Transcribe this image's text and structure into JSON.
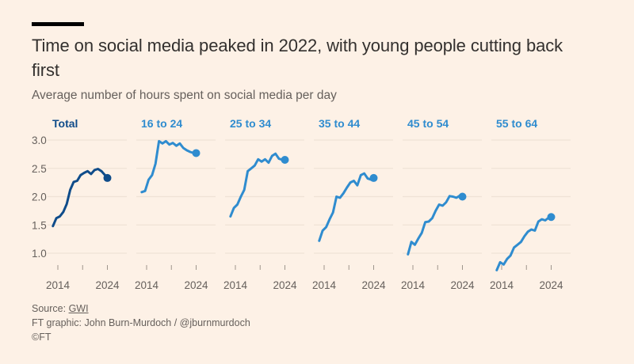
{
  "header": {
    "title": "Time on social media peaked in 2022, with young people cutting back first",
    "subtitle": "Average number of hours spent on social media per day"
  },
  "footer": {
    "source_prefix": "Source: ",
    "source_link": "GWI",
    "credit": "FT graphic: John Burn-Murdoch / @jburnmurdoch",
    "copyright": "©FT"
  },
  "colors": {
    "background": "#fdf1e6",
    "total": "#0f4c8a",
    "age_groups": "#2f8ccf",
    "gridline": "#efe2d6",
    "text": "#33302e",
    "muted_text": "#66605c"
  },
  "chart_data": {
    "type": "line",
    "layout": "small-multiples",
    "title": "Time on social media peaked in 2022, with young people cutting back first",
    "subtitle": "Average number of hours spent on social media per day",
    "xlabel": "",
    "ylabel": "",
    "ylim": [
      0.7,
      3.05
    ],
    "xlim": [
      2013,
      2024.3
    ],
    "yticks": [
      3.0,
      2.5,
      2.0,
      1.5,
      1.0
    ],
    "ytick_labels": [
      "3.0",
      "2.5",
      "2.0",
      "1.5",
      "1.0"
    ],
    "xticks": [
      2014,
      2019,
      2024
    ],
    "xtick_labels": [
      "2014",
      "",
      "2024"
    ],
    "grid": true,
    "x": [
      2013.0,
      2013.7,
      2014.4,
      2015.1,
      2015.8,
      2016.5,
      2017.2,
      2017.9,
      2018.6,
      2019.3,
      2020.0,
      2020.7,
      2021.4,
      2022.1,
      2022.8,
      2023.5,
      2024.0
    ],
    "series": [
      {
        "name": "Total",
        "color_key": "total",
        "values": [
          1.48,
          1.62,
          1.65,
          1.73,
          1.87,
          2.12,
          2.26,
          2.28,
          2.38,
          2.42,
          2.45,
          2.4,
          2.47,
          2.49,
          2.45,
          2.38,
          2.33
        ]
      },
      {
        "name": "16 to 24",
        "color_key": "age_groups",
        "values": [
          2.08,
          2.1,
          2.3,
          2.38,
          2.58,
          2.98,
          2.94,
          2.98,
          2.92,
          2.95,
          2.9,
          2.94,
          2.86,
          2.82,
          2.79,
          2.77,
          2.77
        ]
      },
      {
        "name": "25 to 34",
        "color_key": "age_groups",
        "values": [
          1.65,
          1.8,
          1.86,
          2.0,
          2.12,
          2.45,
          2.5,
          2.55,
          2.66,
          2.62,
          2.66,
          2.6,
          2.72,
          2.76,
          2.67,
          2.65,
          2.65
        ]
      },
      {
        "name": "35 to 44",
        "color_key": "age_groups",
        "values": [
          1.22,
          1.4,
          1.46,
          1.6,
          1.72,
          2.0,
          1.98,
          2.06,
          2.16,
          2.25,
          2.28,
          2.2,
          2.38,
          2.41,
          2.32,
          2.3,
          2.33
        ]
      },
      {
        "name": "45 to 54",
        "color_key": "age_groups",
        "values": [
          0.98,
          1.2,
          1.15,
          1.26,
          1.36,
          1.55,
          1.56,
          1.62,
          1.75,
          1.86,
          1.84,
          1.9,
          2.01,
          2.0,
          1.98,
          2.02,
          2.0
        ]
      },
      {
        "name": "55 to 64",
        "color_key": "age_groups",
        "values": [
          0.7,
          0.84,
          0.8,
          0.9,
          0.96,
          1.1,
          1.15,
          1.2,
          1.3,
          1.38,
          1.42,
          1.4,
          1.56,
          1.6,
          1.58,
          1.63,
          1.64
        ]
      }
    ],
    "end_markers": true
  }
}
